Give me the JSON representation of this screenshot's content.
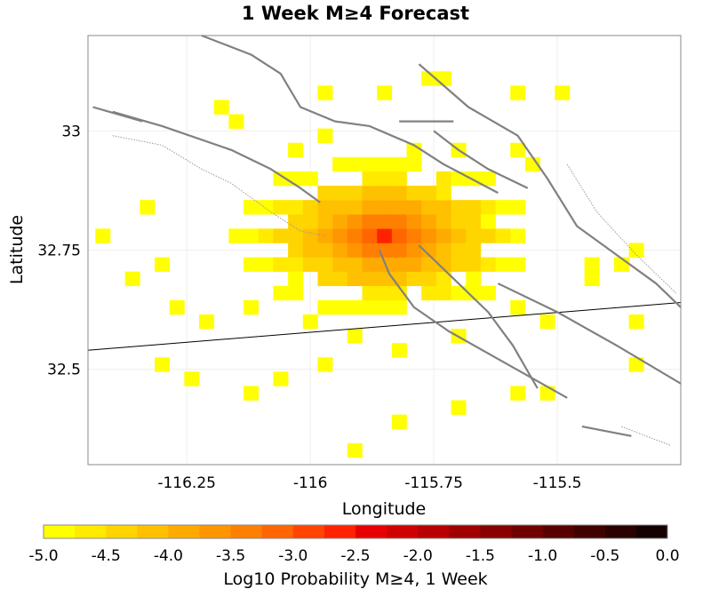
{
  "chart_data": {
    "type": "heatmap",
    "title": "1 Week M≥4 Forecast",
    "xlabel": "Longitude",
    "ylabel": "Latitude",
    "xlim": [
      -116.45,
      -115.25
    ],
    "ylim": [
      32.3,
      33.2
    ],
    "x_ticks": [
      {
        "value": -116.25,
        "label": "-116.25"
      },
      {
        "value": -116.0,
        "label": "-116"
      },
      {
        "value": -115.75,
        "label": "-115.75"
      },
      {
        "value": -115.5,
        "label": "-115.5"
      }
    ],
    "y_ticks": [
      {
        "value": 33.0,
        "label": "33"
      },
      {
        "value": 32.75,
        "label": "32.75"
      },
      {
        "value": 32.5,
        "label": "32.5"
      }
    ],
    "grid": true,
    "colorbar": {
      "label": "Log10 Probability M≥4, 1 Week",
      "min": -5.0,
      "max": 0.0,
      "tick_labels": [
        "-5.0",
        "-4.5",
        "-4.0",
        "-3.5",
        "-3.0",
        "-2.5",
        "-2.0",
        "-1.5",
        "-1.0",
        "-0.5",
        "0.0"
      ],
      "colors": [
        "#ffff00",
        "#ffea00",
        "#ffd500",
        "#ffc000",
        "#ffaa00",
        "#ff9500",
        "#ff7f00",
        "#ff6500",
        "#ff4400",
        "#ff2200",
        "#e80000",
        "#d00000",
        "#b80000",
        "#a00000",
        "#880000",
        "#700000",
        "#580000",
        "#400000",
        "#2a0000",
        "#140000"
      ]
    },
    "center": [
      -115.86,
      32.765
    ],
    "peak_value": -2.6,
    "cells": [
      [
        -115.74,
        33.12
      ],
      [
        -115.84,
        33.09
      ],
      [
        -116.19,
        33.05
      ],
      [
        -116.14,
        33.02
      ],
      [
        -115.97,
        33.0
      ],
      [
        -116.04,
        32.96
      ],
      [
        -115.69,
        32.97
      ],
      [
        -115.79,
        32.97
      ],
      [
        -115.99,
        32.91
      ],
      [
        -115.81,
        32.89
      ],
      [
        -115.59,
        32.95
      ],
      [
        -115.56,
        32.93
      ],
      [
        -115.63,
        32.82
      ],
      [
        -115.69,
        32.85
      ],
      [
        -116.31,
        32.72
      ],
      [
        -116.26,
        32.64
      ],
      [
        -116.21,
        32.6
      ],
      [
        -116.11,
        32.62
      ],
      [
        -116.01,
        32.6
      ],
      [
        -115.92,
        32.56
      ],
      [
        -115.81,
        32.53
      ],
      [
        -115.71,
        32.57
      ],
      [
        -115.64,
        32.66
      ],
      [
        -115.59,
        32.62
      ],
      [
        -115.52,
        32.6
      ],
      [
        -115.52,
        32.44
      ],
      [
        -115.59,
        32.44
      ],
      [
        -115.69,
        32.43
      ],
      [
        -115.81,
        32.38
      ],
      [
        -115.91,
        32.34
      ],
      [
        -116.11,
        32.46
      ],
      [
        -116.23,
        32.47
      ],
      [
        -116.31,
        32.52
      ],
      [
        -115.42,
        32.68
      ],
      [
        -115.44,
        32.72
      ],
      [
        -115.37,
        32.71
      ],
      [
        -115.34,
        32.75
      ],
      [
        -115.34,
        32.6
      ],
      [
        -115.34,
        32.52
      ],
      [
        -116.42,
        32.78
      ],
      [
        -115.61,
        32.78
      ],
      [
        -115.66,
        32.7
      ],
      [
        -115.69,
        32.74
      ],
      [
        -116.34,
        32.84
      ],
      [
        -116.03,
        32.69
      ],
      [
        -115.97,
        32.51
      ],
      [
        -116.06,
        32.48
      ],
      [
        -115.98,
        33.07
      ],
      [
        -115.75,
        33.1
      ],
      [
        -115.58,
        33.09
      ],
      [
        -115.49,
        33.08
      ],
      [
        -116.35,
        32.68
      ]
    ],
    "faults": [
      [
        [
          -116.22,
          33.2
        ],
        [
          -116.12,
          33.16
        ],
        [
          -116.06,
          33.12
        ],
        [
          -116.02,
          33.05
        ],
        [
          -115.95,
          33.02
        ],
        [
          -115.88,
          33.01
        ],
        [
          -115.79,
          32.97
        ],
        [
          -115.73,
          32.93
        ],
        [
          -115.62,
          32.87
        ]
      ],
      [
        [
          -115.75,
          33.0
        ],
        [
          -115.7,
          32.96
        ],
        [
          -115.64,
          32.92
        ],
        [
          -115.56,
          32.88
        ]
      ],
      [
        [
          -115.78,
          32.76
        ],
        [
          -115.72,
          32.7
        ],
        [
          -115.64,
          32.62
        ],
        [
          -115.59,
          32.55
        ],
        [
          -115.54,
          32.46
        ]
      ],
      [
        [
          -115.82,
          33.02
        ],
        [
          -115.71,
          33.02
        ]
      ],
      [
        [
          -115.86,
          32.75
        ],
        [
          -115.84,
          32.7
        ],
        [
          -115.79,
          32.63
        ],
        [
          -115.72,
          32.58
        ],
        [
          -115.6,
          32.51
        ],
        [
          -115.48,
          32.44
        ]
      ],
      [
        [
          -115.78,
          33.14
        ],
        [
          -115.68,
          33.05
        ],
        [
          -115.58,
          32.99
        ],
        [
          -115.52,
          32.9
        ],
        [
          -115.46,
          32.8
        ],
        [
          -115.38,
          32.74
        ],
        [
          -115.3,
          32.68
        ],
        [
          -115.25,
          32.63
        ]
      ],
      [
        [
          -116.4,
          33.04
        ],
        [
          -116.3,
          33.01
        ],
        [
          -116.16,
          32.96
        ],
        [
          -116.08,
          32.92
        ],
        [
          -116.02,
          32.88
        ],
        [
          -115.98,
          32.85
        ]
      ],
      [
        [
          -116.44,
          33.05
        ],
        [
          -116.34,
          33.02
        ]
      ],
      [
        [
          -115.62,
          32.68
        ],
        [
          -115.5,
          32.62
        ],
        [
          -115.38,
          32.55
        ],
        [
          -115.25,
          32.47
        ]
      ],
      [
        [
          -115.45,
          32.38
        ],
        [
          -115.35,
          32.36
        ]
      ]
    ],
    "border": [
      [
        -116.45,
        32.54
      ],
      [
        -115.25,
        32.64
      ]
    ],
    "fault_outline": [
      [
        [
          -116.4,
          32.99
        ],
        [
          -116.3,
          32.97
        ],
        [
          -116.22,
          32.92
        ],
        [
          -116.16,
          32.89
        ],
        [
          -116.08,
          32.83
        ],
        [
          -116.02,
          32.79
        ],
        [
          -115.97,
          32.78
        ]
      ],
      [
        [
          -115.48,
          32.93
        ],
        [
          -115.42,
          32.83
        ],
        [
          -115.34,
          32.74
        ],
        [
          -115.26,
          32.66
        ]
      ],
      [
        [
          -115.37,
          32.38
        ],
        [
          -115.27,
          32.34
        ]
      ]
    ]
  }
}
